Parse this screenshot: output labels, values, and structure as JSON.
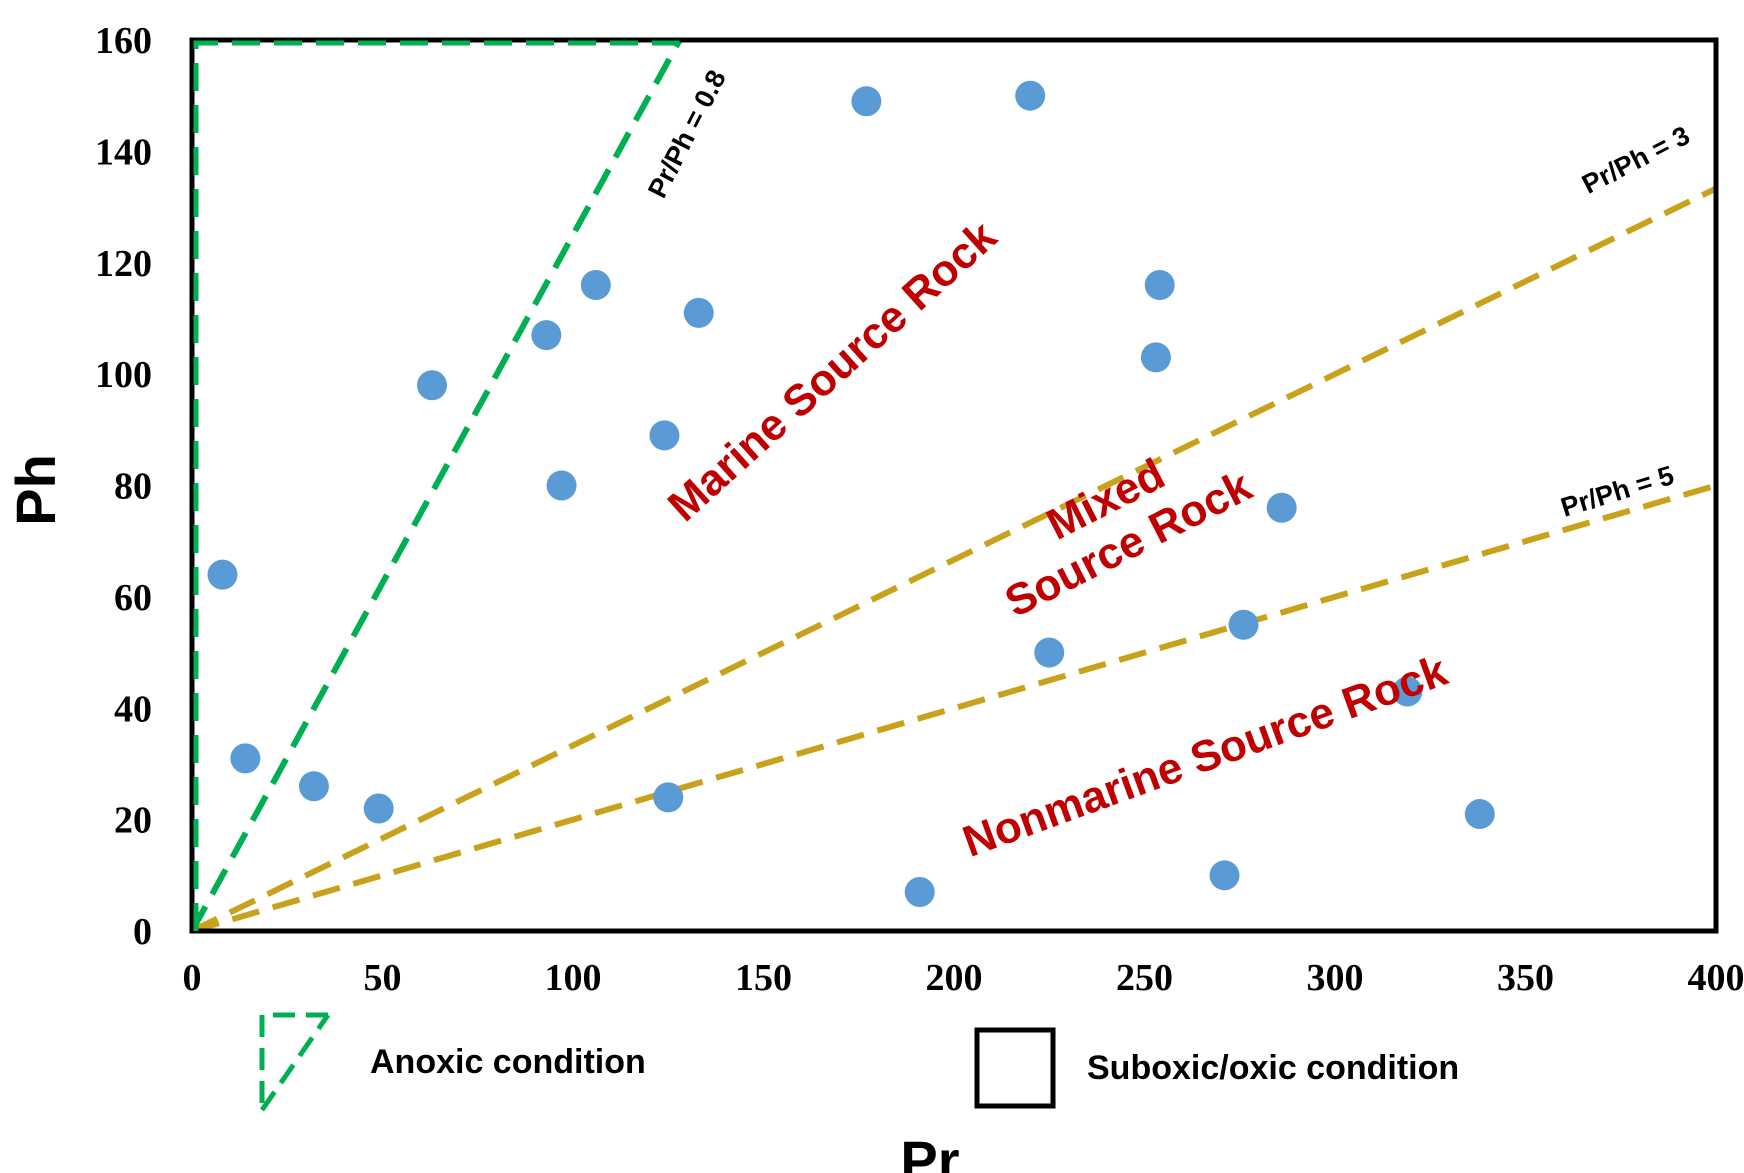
{
  "chart_data": {
    "type": "scatter",
    "xlabel": "Pr",
    "ylabel": "Ph",
    "xlim": [
      0,
      400
    ],
    "ylim": [
      0,
      160
    ],
    "x_ticks": [
      0,
      50,
      100,
      150,
      200,
      250,
      300,
      350,
      400
    ],
    "y_ticks": [
      0,
      20,
      40,
      60,
      80,
      100,
      120,
      140,
      160
    ],
    "grid": false,
    "point_color": "#5b9bd5",
    "series": [
      {
        "points": [
          {
            "x": 8,
            "y": 64
          },
          {
            "x": 14,
            "y": 31
          },
          {
            "x": 32,
            "y": 26
          },
          {
            "x": 49,
            "y": 22
          },
          {
            "x": 63,
            "y": 98
          },
          {
            "x": 93,
            "y": 107
          },
          {
            "x": 97,
            "y": 80
          },
          {
            "x": 106,
            "y": 116
          },
          {
            "x": 124,
            "y": 89
          },
          {
            "x": 125,
            "y": 24
          },
          {
            "x": 133,
            "y": 111
          },
          {
            "x": 177,
            "y": 149
          },
          {
            "x": 191,
            "y": 7
          },
          {
            "x": 220,
            "y": 150
          },
          {
            "x": 225,
            "y": 50
          },
          {
            "x": 253,
            "y": 103
          },
          {
            "x": 254,
            "y": 116
          },
          {
            "x": 271,
            "y": 10
          },
          {
            "x": 276,
            "y": 55
          },
          {
            "x": 286,
            "y": 76
          },
          {
            "x": 319,
            "y": 43
          },
          {
            "x": 338,
            "y": 21
          }
        ]
      }
    ],
    "reference_lines": [
      {
        "label": "Pr/Ph = 0.8",
        "ratio": 0.8,
        "color": "#00b050"
      },
      {
        "label": "Pr/Ph = 3",
        "ratio": 3,
        "color": "#c9a21c"
      },
      {
        "label": "Pr/Ph = 5",
        "ratio": 5,
        "color": "#c9a21c"
      }
    ],
    "regions": [
      {
        "label": "Marine Source Rock",
        "color": "#c00000"
      },
      {
        "label_line1": "Mixed",
        "label_line2": "Source Rock",
        "color": "#c00000"
      },
      {
        "label": "Nonmarine Source Rock",
        "color": "#c00000"
      }
    ],
    "legend": [
      {
        "label": "Anoxic condition",
        "icon": "green-dashed-triangle-icon",
        "color": "#00b050"
      },
      {
        "label": "Suboxic/oxic condition",
        "icon": "black-square-icon",
        "color": "#000000"
      }
    ]
  }
}
